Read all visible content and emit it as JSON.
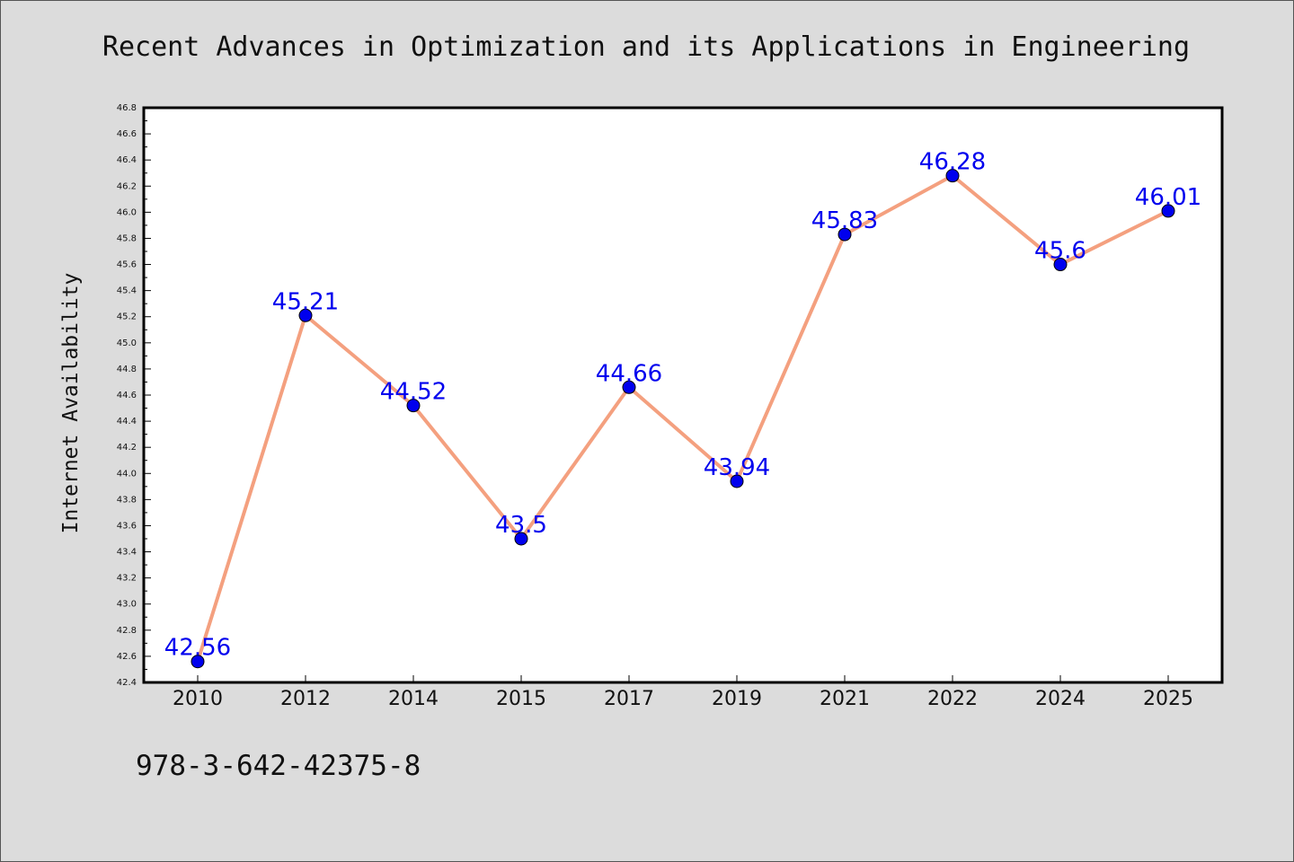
{
  "title": "Recent Advances in Optimization and its Applications in Engineering",
  "footer_text": "978-3-642-42375-8",
  "chart_data": {
    "type": "line",
    "title": "Recent Advances in Optimization and its Applications in Engineering",
    "xlabel": "",
    "ylabel": "Internet Availability",
    "categories": [
      "2010",
      "2012",
      "2014",
      "2015",
      "2017",
      "2019",
      "2021",
      "2022",
      "2024",
      "2025"
    ],
    "series": [
      {
        "values": [
          42.56,
          45.21,
          44.52,
          43.5,
          44.66,
          43.94,
          45.83,
          46.28,
          45.6,
          46.01
        ],
        "labels": [
          "42.56",
          "45.21",
          "44.52",
          "43.5",
          "44.66",
          "43.94",
          "45.83",
          "46.28",
          "45.6",
          "46.01"
        ],
        "line_color": "#f4a07f",
        "marker_color": "#0000ee"
      }
    ],
    "ylim": [
      42.4,
      46.8
    ],
    "y_ticks": [
      "42.4",
      "42.6",
      "42.8",
      "43.0",
      "43.2",
      "43.4",
      "43.6",
      "43.8",
      "44.0",
      "44.2",
      "44.4",
      "44.6",
      "44.8",
      "45.0",
      "45.2",
      "45.4",
      "45.6",
      "45.8",
      "46.0",
      "46.2",
      "46.4",
      "46.6",
      "46.8"
    ],
    "grid": false,
    "legend": "none",
    "label_color": "#0000ee"
  }
}
